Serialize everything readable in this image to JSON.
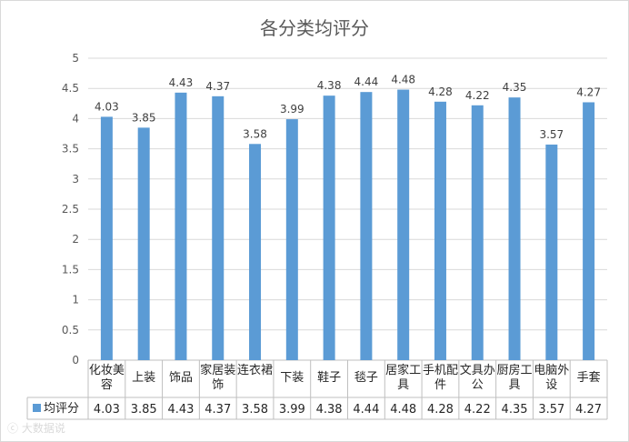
{
  "chart_data": {
    "type": "bar",
    "title": "各分类均评分",
    "categories": [
      "化妆美容",
      "上装",
      "饰品",
      "家居装饰",
      "连衣裙",
      "下装",
      "鞋子",
      "毯子",
      "居家工具",
      "手机配件",
      "文具办公",
      "厨房工具",
      "电脑外设",
      "手套"
    ],
    "series": [
      {
        "name": "均评分",
        "values": [
          4.03,
          3.85,
          4.43,
          4.37,
          3.58,
          3.99,
          4.38,
          4.44,
          4.48,
          4.28,
          4.22,
          4.35,
          3.57,
          4.27
        ]
      }
    ],
    "value_labels": [
      "4.03",
      "3.85",
      "4.43",
      "4.37",
      "3.58",
      "3.99",
      "4.38",
      "4.44",
      "4.48",
      "4.28",
      "4.22",
      "4.35",
      "3.57",
      "4.27"
    ],
    "ylim": [
      0,
      5
    ],
    "y_ticks": [
      "0",
      "0.5",
      "1",
      "1.5",
      "2",
      "2.5",
      "3",
      "3.5",
      "4",
      "4.5",
      "5"
    ],
    "grid": true,
    "data_table": true,
    "color": "#5B9BD5"
  },
  "watermark": "ⓒ 大数据说"
}
